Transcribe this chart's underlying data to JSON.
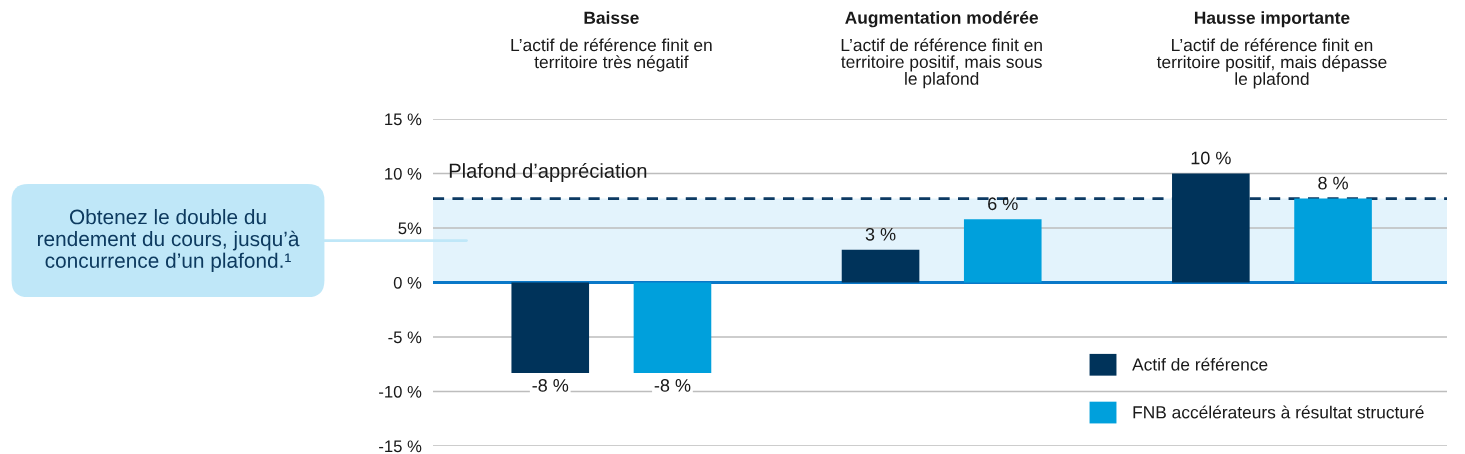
{
  "chart_data": {
    "type": "bar",
    "categories": [
      "Baisse",
      "Augmentation modérée",
      "Hausse importante"
    ],
    "series": [
      {
        "name": "Actif de référence",
        "color": "#00335a",
        "values": [
          -8.3,
          3,
          10
        ],
        "value_labels": [
          "-8 %",
          "3 %",
          "10 %"
        ]
      },
      {
        "name": "FNB accélérateurs à résultat structuré",
        "color": "#00a0dc",
        "values": [
          -8.3,
          5.8,
          7.7
        ],
        "value_labels": [
          "-8 %",
          "6 %",
          "8 %"
        ]
      }
    ],
    "ylim": [
      -15,
      15
    ],
    "yticks": [
      {
        "value": 15,
        "label": "15 %"
      },
      {
        "value": 10,
        "label": "10 %"
      },
      {
        "value": 5,
        "label": "5%"
      },
      {
        "value": 0,
        "label": "0 %"
      },
      {
        "value": -5,
        "label": "-5 %"
      },
      {
        "value": -10,
        "label": "-10 %"
      },
      {
        "value": -15,
        "label": "-15 %"
      }
    ],
    "grid": "y",
    "legend": "bottom right",
    "ref_lines": [
      {
        "axis": "y",
        "value": 7.7,
        "label": "Plafond d’appréciation",
        "color": "#0d3a63",
        "line_style": "dashed"
      },
      {
        "axis": "y",
        "value": 0,
        "color": "#0a78c8",
        "line_style": "solid"
      }
    ],
    "bands": [
      {
        "axis": "y",
        "from": 0,
        "to": 7.7,
        "color": "#e3f3fc"
      }
    ],
    "annotations": [
      "L’actif de référence finit en\nterritoire très négatif",
      "L’actif de référence finit en\nterritoire positif, mais sous\nle plafond",
      "L’actif de référence finit en\nterritoire positif, mais dépasse\nle plafond",
      "Obtenez le double du\nrendement du cours, jusqu’à\nconcurrence d’un plafond.¹"
    ]
  }
}
